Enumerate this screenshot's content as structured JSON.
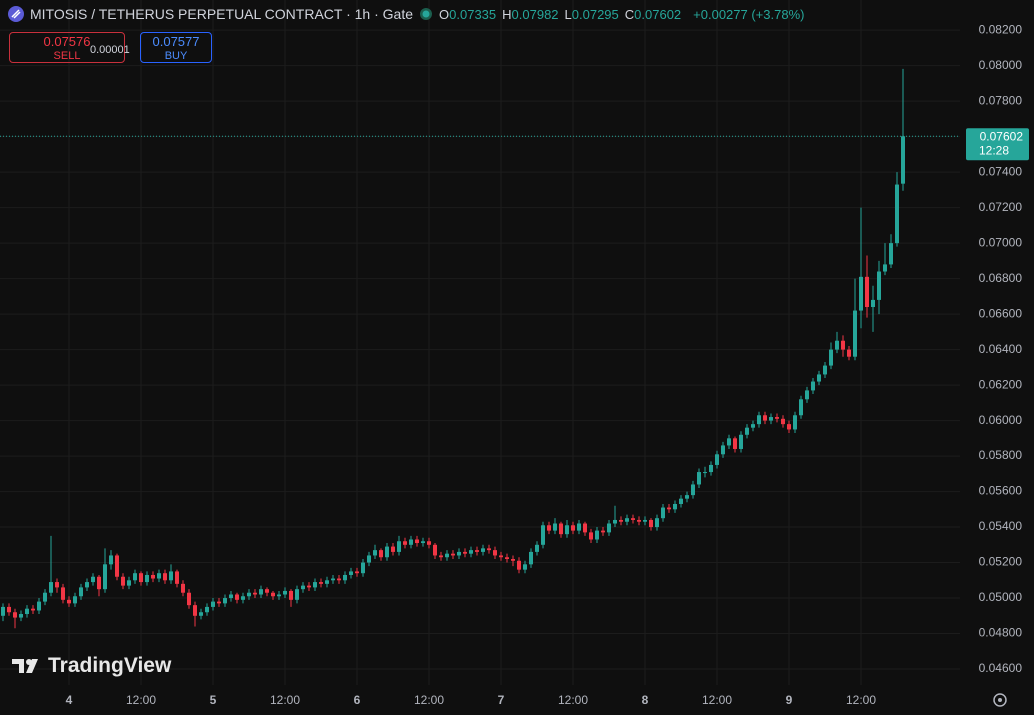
{
  "header": {
    "title": "MITOSIS / TETHERUS PERPETUAL CONTRACT · 1h · Gate",
    "ohlc": [
      {
        "label": "O",
        "value": "0.07335"
      },
      {
        "label": "H",
        "value": "0.07982"
      },
      {
        "label": "L",
        "value": "0.07295"
      },
      {
        "label": "C",
        "value": "0.07602"
      }
    ],
    "change": "+0.00277 (+3.78%)"
  },
  "trade": {
    "sell_price": "0.07576",
    "sell_label": "SELL",
    "spread": "0.00001",
    "buy_price": "0.07577",
    "buy_label": "BUY"
  },
  "brand": "TradingView",
  "chart_data": {
    "type": "candlestick",
    "up_color": "#26a69a",
    "down_color": "#f23645",
    "grid": true,
    "last_value_label": "0.07602",
    "countdown": "12:28",
    "xlim": [
      -0.5,
      159.5
    ],
    "ylim": [
      0.0451,
      0.0837
    ],
    "xticks": [
      {
        "value": 11,
        "label": "4"
      },
      {
        "value": 23,
        "label": "12:00"
      },
      {
        "value": 35,
        "label": "5"
      },
      {
        "value": 47,
        "label": "12:00"
      },
      {
        "value": 59,
        "label": "6"
      },
      {
        "value": 71,
        "label": "12:00"
      },
      {
        "value": 83,
        "label": "7"
      },
      {
        "value": 95,
        "label": "12:00"
      },
      {
        "value": 107,
        "label": "8"
      },
      {
        "value": 119,
        "label": "12:00"
      },
      {
        "value": 131,
        "label": "9"
      },
      {
        "value": 143,
        "label": "12:00"
      }
    ],
    "yticks": [
      {
        "value": 0.046,
        "label": "0.04600"
      },
      {
        "value": 0.048,
        "label": "0.04800"
      },
      {
        "value": 0.05,
        "label": "0.05000"
      },
      {
        "value": 0.052,
        "label": "0.05200"
      },
      {
        "value": 0.054,
        "label": "0.05400"
      },
      {
        "value": 0.056,
        "label": "0.05600"
      },
      {
        "value": 0.058,
        "label": "0.05800"
      },
      {
        "value": 0.06,
        "label": "0.06000"
      },
      {
        "value": 0.062,
        "label": "0.06200"
      },
      {
        "value": 0.064,
        "label": "0.06400"
      },
      {
        "value": 0.066,
        "label": "0.06600"
      },
      {
        "value": 0.068,
        "label": "0.06800"
      },
      {
        "value": 0.07,
        "label": "0.07000"
      },
      {
        "value": 0.072,
        "label": "0.07200"
      },
      {
        "value": 0.074,
        "label": "0.07400"
      },
      {
        "value": 0.076,
        "label": "0.07600"
      },
      {
        "value": 0.078,
        "label": "0.07800"
      },
      {
        "value": 0.08,
        "label": "0.08000"
      },
      {
        "value": 0.082,
        "label": "0.08200"
      }
    ],
    "open": [
      0.049,
      0.0495,
      0.0492,
      0.0489,
      0.0491,
      0.0494,
      0.0493,
      0.0498,
      0.0503,
      0.0509,
      0.0506,
      0.0499,
      0.0497,
      0.0501,
      0.0506,
      0.0509,
      0.0512,
      0.0505,
      0.0519,
      0.0524,
      0.0512,
      0.0507,
      0.051,
      0.0514,
      0.0509,
      0.0513,
      0.0511,
      0.0514,
      0.051,
      0.0515,
      0.0508,
      0.0503,
      0.0496,
      0.049,
      0.0492,
      0.0495,
      0.0498,
      0.0497,
      0.05,
      0.0502,
      0.0499,
      0.0501,
      0.0503,
      0.0502,
      0.0505,
      0.0503,
      0.0501,
      0.0502,
      0.0504,
      0.0499,
      0.0505,
      0.0507,
      0.0506,
      0.0509,
      0.0508,
      0.051,
      0.0511,
      0.051,
      0.0513,
      0.0515,
      0.0514,
      0.052,
      0.0524,
      0.0527,
      0.0523,
      0.0529,
      0.0526,
      0.0532,
      0.053,
      0.0533,
      0.0531,
      0.0532,
      0.053,
      0.0524,
      0.0523,
      0.0525,
      0.0524,
      0.0526,
      0.0525,
      0.0527,
      0.0526,
      0.0528,
      0.0527,
      0.0524,
      0.0523,
      0.0522,
      0.0521,
      0.0516,
      0.0519,
      0.0526,
      0.053,
      0.0541,
      0.0538,
      0.0542,
      0.0536,
      0.0541,
      0.0538,
      0.0542,
      0.0537,
      0.0533,
      0.0538,
      0.0537,
      0.0542,
      0.0544,
      0.0543,
      0.0545,
      0.0544,
      0.0543,
      0.0544,
      0.054,
      0.0545,
      0.0551,
      0.055,
      0.0553,
      0.0556,
      0.0558,
      0.0564,
      0.0571,
      0.0571,
      0.0575,
      0.0581,
      0.0586,
      0.059,
      0.0584,
      0.0592,
      0.0596,
      0.0598,
      0.0603,
      0.06,
      0.0602,
      0.0601,
      0.0598,
      0.0595,
      0.0603,
      0.0612,
      0.0617,
      0.0622,
      0.0626,
      0.0631,
      0.064,
      0.0645,
      0.064,
      0.0636,
      0.0662,
      0.0681,
      0.0664,
      0.0668,
      0.0684,
      0.0688,
      0.07,
      0.07335
    ],
    "high": [
      0.0497,
      0.0497,
      0.0494,
      0.0493,
      0.0496,
      0.0496,
      0.05,
      0.0505,
      0.0535,
      0.0511,
      0.0508,
      0.0501,
      0.0503,
      0.0508,
      0.0511,
      0.0514,
      0.0513,
      0.0528,
      0.0527,
      0.0525,
      0.0514,
      0.0512,
      0.0516,
      0.0515,
      0.0515,
      0.0515,
      0.0516,
      0.0516,
      0.0519,
      0.0516,
      0.051,
      0.0505,
      0.0498,
      0.0494,
      0.0497,
      0.05,
      0.05,
      0.0502,
      0.0504,
      0.0503,
      0.0503,
      0.0505,
      0.0505,
      0.0507,
      0.0506,
      0.0504,
      0.0504,
      0.0506,
      0.0505,
      0.0507,
      0.0509,
      0.0509,
      0.0511,
      0.0511,
      0.0512,
      0.0513,
      0.0513,
      0.0515,
      0.0517,
      0.0517,
      0.0522,
      0.0526,
      0.053,
      0.0528,
      0.0531,
      0.0531,
      0.0535,
      0.0534,
      0.0535,
      0.0535,
      0.0534,
      0.0534,
      0.0531,
      0.0526,
      0.0527,
      0.0527,
      0.0528,
      0.0528,
      0.0529,
      0.0529,
      0.053,
      0.053,
      0.0529,
      0.0526,
      0.0525,
      0.0524,
      0.0523,
      0.0521,
      0.0528,
      0.0532,
      0.0543,
      0.0543,
      0.0545,
      0.0543,
      0.0544,
      0.0543,
      0.0544,
      0.0543,
      0.0539,
      0.054,
      0.054,
      0.0544,
      0.0552,
      0.0546,
      0.0547,
      0.0547,
      0.0546,
      0.0546,
      0.0545,
      0.0547,
      0.0553,
      0.0553,
      0.0555,
      0.0558,
      0.056,
      0.0566,
      0.0573,
      0.0574,
      0.0577,
      0.0583,
      0.0588,
      0.0592,
      0.0591,
      0.0594,
      0.0598,
      0.06,
      0.0605,
      0.0605,
      0.0604,
      0.0604,
      0.0603,
      0.06,
      0.0605,
      0.0614,
      0.0619,
      0.0624,
      0.0628,
      0.0633,
      0.0644,
      0.065,
      0.0648,
      0.0642,
      0.068,
      0.072,
      0.0693,
      0.0676,
      0.069,
      0.07,
      0.0705,
      0.074,
      0.07982
    ],
    "low": [
      0.0487,
      0.049,
      0.0483,
      0.0487,
      0.0489,
      0.0491,
      0.0491,
      0.0496,
      0.0501,
      0.0503,
      0.0497,
      0.0495,
      0.0495,
      0.0499,
      0.0504,
      0.0507,
      0.0501,
      0.0503,
      0.0516,
      0.051,
      0.0505,
      0.0505,
      0.0508,
      0.0507,
      0.0507,
      0.0509,
      0.0509,
      0.0508,
      0.0508,
      0.0506,
      0.0501,
      0.0494,
      0.0484,
      0.0488,
      0.049,
      0.0493,
      0.0495,
      0.0495,
      0.0498,
      0.0497,
      0.0497,
      0.0499,
      0.05,
      0.05,
      0.0501,
      0.0499,
      0.0499,
      0.05,
      0.0495,
      0.0497,
      0.0503,
      0.0504,
      0.0504,
      0.0506,
      0.0506,
      0.0508,
      0.0508,
      0.0508,
      0.0511,
      0.0512,
      0.0512,
      0.0518,
      0.0522,
      0.0521,
      0.0521,
      0.0524,
      0.0524,
      0.0528,
      0.0528,
      0.0529,
      0.0529,
      0.0528,
      0.0522,
      0.0521,
      0.0521,
      0.0522,
      0.0522,
      0.0523,
      0.0523,
      0.0524,
      0.0524,
      0.0525,
      0.0522,
      0.0521,
      0.052,
      0.0518,
      0.0514,
      0.0514,
      0.0517,
      0.0524,
      0.0528,
      0.0536,
      0.0536,
      0.0534,
      0.0534,
      0.0536,
      0.0536,
      0.0535,
      0.0531,
      0.0531,
      0.0535,
      0.0535,
      0.054,
      0.0541,
      0.0541,
      0.0542,
      0.0541,
      0.0541,
      0.0538,
      0.0538,
      0.0543,
      0.0548,
      0.0548,
      0.0551,
      0.0554,
      0.0556,
      0.0562,
      0.0568,
      0.0569,
      0.0573,
      0.0579,
      0.0584,
      0.0582,
      0.0582,
      0.059,
      0.0594,
      0.0596,
      0.0598,
      0.0598,
      0.0599,
      0.0596,
      0.0593,
      0.0593,
      0.0601,
      0.061,
      0.0615,
      0.062,
      0.0624,
      0.0629,
      0.0638,
      0.0636,
      0.0634,
      0.0634,
      0.0652,
      0.0658,
      0.065,
      0.066,
      0.0682,
      0.0686,
      0.0698,
      0.07295
    ],
    "close": [
      0.0495,
      0.0492,
      0.0489,
      0.0491,
      0.0494,
      0.0493,
      0.0498,
      0.0503,
      0.0509,
      0.0506,
      0.0499,
      0.0497,
      0.0501,
      0.0506,
      0.0509,
      0.0512,
      0.0505,
      0.0519,
      0.0524,
      0.0512,
      0.0507,
      0.051,
      0.0514,
      0.0509,
      0.0513,
      0.0511,
      0.0514,
      0.051,
      0.0515,
      0.0508,
      0.0503,
      0.0496,
      0.049,
      0.0492,
      0.0495,
      0.0498,
      0.0497,
      0.05,
      0.0502,
      0.0499,
      0.0501,
      0.0503,
      0.0502,
      0.0505,
      0.0503,
      0.0501,
      0.0502,
      0.0504,
      0.0499,
      0.0505,
      0.0507,
      0.0506,
      0.0509,
      0.0508,
      0.051,
      0.0511,
      0.051,
      0.0513,
      0.0515,
      0.0514,
      0.052,
      0.0524,
      0.0527,
      0.0523,
      0.0529,
      0.0526,
      0.0532,
      0.053,
      0.0533,
      0.0531,
      0.0532,
      0.053,
      0.0524,
      0.0523,
      0.0525,
      0.0524,
      0.0526,
      0.0525,
      0.0527,
      0.0526,
      0.0528,
      0.0527,
      0.0524,
      0.0523,
      0.0522,
      0.0521,
      0.0516,
      0.0519,
      0.0526,
      0.053,
      0.0541,
      0.0538,
      0.0542,
      0.0536,
      0.0541,
      0.0538,
      0.0542,
      0.0537,
      0.0533,
      0.0538,
      0.0537,
      0.0542,
      0.0544,
      0.0543,
      0.0545,
      0.0544,
      0.0543,
      0.0544,
      0.054,
      0.0545,
      0.0551,
      0.055,
      0.0553,
      0.0556,
      0.0558,
      0.0564,
      0.0571,
      0.0571,
      0.0575,
      0.0581,
      0.0586,
      0.059,
      0.0584,
      0.0592,
      0.0596,
      0.0598,
      0.0603,
      0.06,
      0.0602,
      0.0601,
      0.0598,
      0.0595,
      0.0603,
      0.0612,
      0.0617,
      0.0622,
      0.0626,
      0.0631,
      0.064,
      0.0645,
      0.064,
      0.0636,
      0.0662,
      0.0681,
      0.0664,
      0.0668,
      0.0684,
      0.0688,
      0.07,
      0.0733,
      0.07602
    ]
  }
}
